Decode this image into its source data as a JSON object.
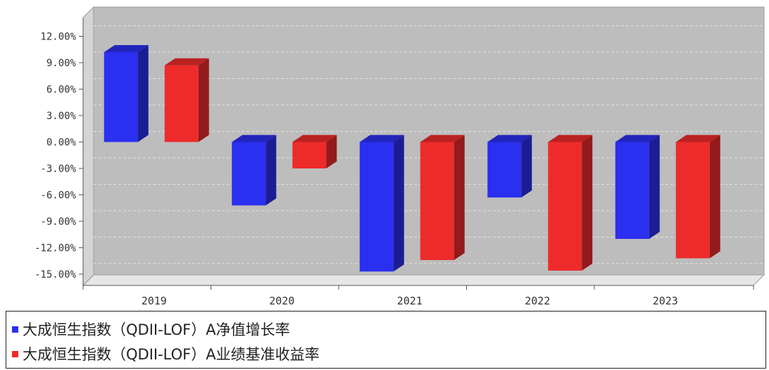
{
  "chart_data": {
    "type": "bar",
    "categories": [
      "2019",
      "2020",
      "2021",
      "2022",
      "2023"
    ],
    "series": [
      {
        "name": "大成恒生指数（QDII-LOF）A净值增长率",
        "color": "#2b2ff0",
        "values": [
          10.2,
          -7.2,
          -14.7,
          -6.3,
          -11.0
        ]
      },
      {
        "name": "大成恒生指数（QDII-LOF）A业绩基准收益率",
        "color": "#ee2b2b",
        "values": [
          8.7,
          -3.0,
          -13.4,
          -14.6,
          -13.2
        ]
      }
    ],
    "ylim": [
      -15,
      12
    ],
    "yticks": [
      12,
      9,
      6,
      3,
      0,
      -3,
      -6,
      -9,
      -12,
      -15
    ],
    "ytick_labels": [
      "12.00%",
      "9.00%",
      "6.00%",
      "3.00%",
      "0.00%",
      "-3.00%",
      "-6.00%",
      "-9.00%",
      "-12.00%",
      "-15.00%"
    ],
    "grid": true,
    "legend_position": "bottom",
    "title": "",
    "xlabel": "",
    "ylabel": ""
  }
}
